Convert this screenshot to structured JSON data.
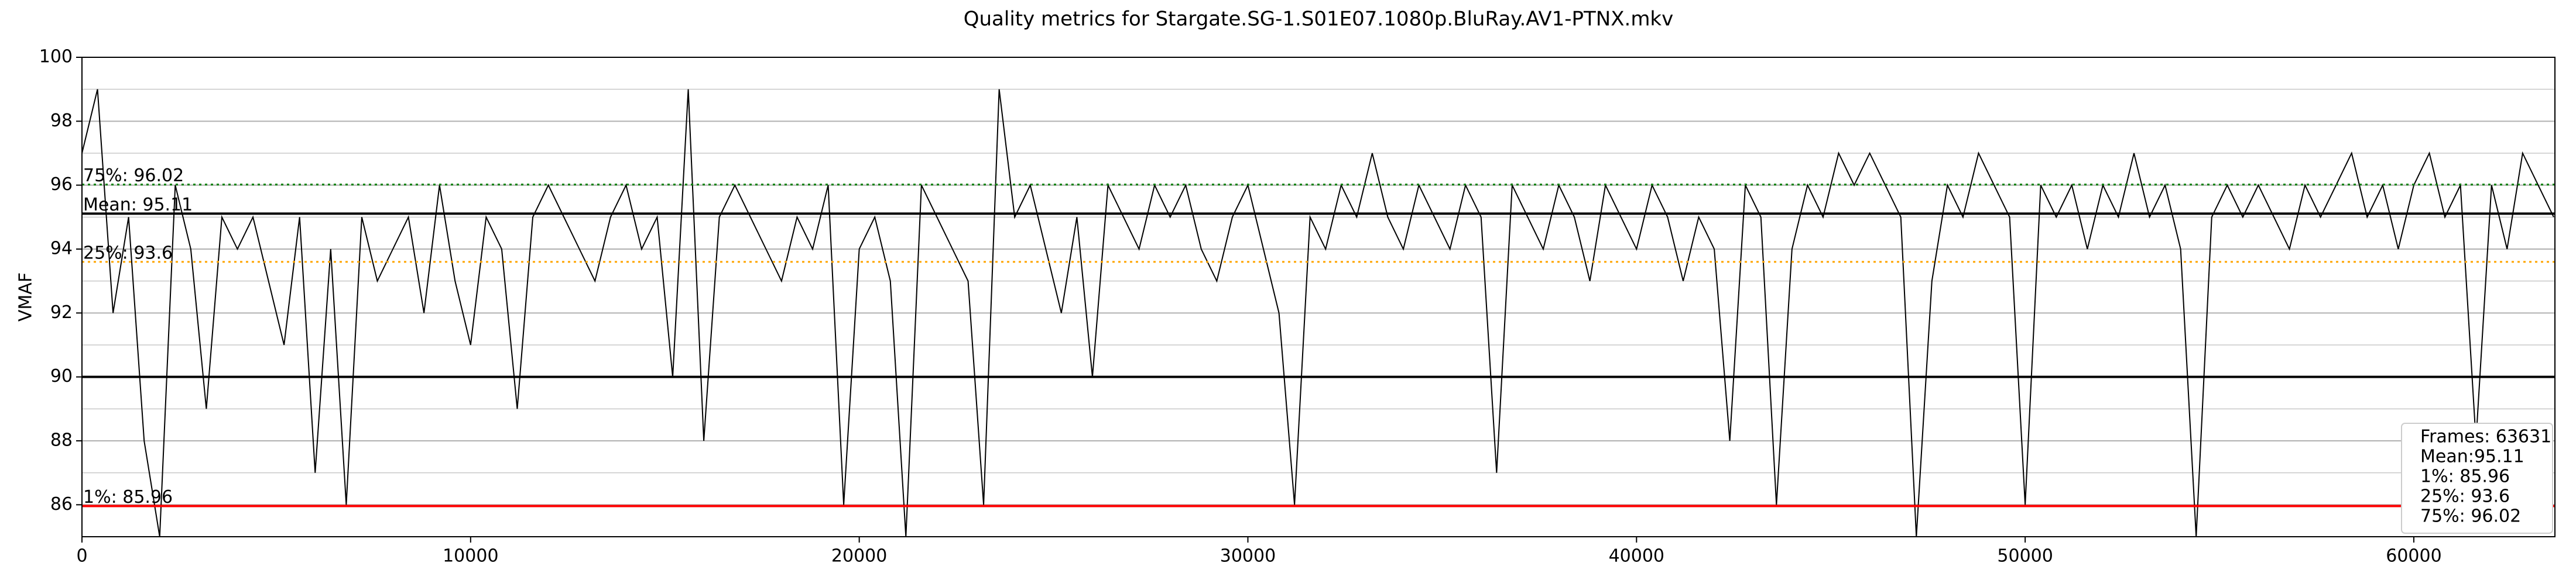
{
  "chart_data": {
    "type": "line",
    "title": "Quality metrics for Stargate.SG-1.S01E07.1080p.BluRay.AV1-PTNX.mkv",
    "y_label": "VMAF",
    "xlim": [
      0,
      63631
    ],
    "ylim": [
      85,
      100
    ],
    "xticks": [
      0,
      10000,
      20000,
      30000,
      40000,
      50000,
      60000
    ],
    "yticks": [
      86,
      88,
      90,
      92,
      94,
      96,
      98,
      100
    ],
    "yminorticks": [
      85,
      87,
      89,
      91,
      93,
      95,
      97,
      99
    ],
    "grid": true,
    "series": [
      {
        "name": "VMAF",
        "color": "#000000",
        "x": [
          0,
          400,
          800,
          1200,
          1600,
          2000,
          2400,
          2800,
          3200,
          3600,
          4000,
          4400,
          4800,
          5200,
          5600,
          6000,
          6400,
          6800,
          7200,
          7600,
          8000,
          8400,
          8800,
          9200,
          9600,
          10000,
          10400,
          10800,
          11200,
          11600,
          12000,
          12400,
          12800,
          13200,
          13600,
          14000,
          14400,
          14800,
          15200,
          15600,
          16000,
          16400,
          16800,
          17200,
          17600,
          18000,
          18400,
          18800,
          19200,
          19600,
          20000,
          20400,
          20800,
          21200,
          21600,
          22000,
          22400,
          22800,
          23200,
          23600,
          24000,
          24400,
          24800,
          25200,
          25600,
          26000,
          26400,
          26800,
          27200,
          27600,
          28000,
          28400,
          28800,
          29200,
          29600,
          30000,
          30400,
          30800,
          31200,
          31600,
          32000,
          32400,
          32800,
          33200,
          33600,
          34000,
          34400,
          34800,
          35200,
          35600,
          36000,
          36400,
          36800,
          37200,
          37600,
          38000,
          38400,
          38800,
          39200,
          39600,
          40000,
          40400,
          40800,
          41200,
          41600,
          42000,
          42400,
          42800,
          43200,
          43600,
          44000,
          44400,
          44800,
          45200,
          45600,
          46000,
          46400,
          46800,
          47200,
          47600,
          48000,
          48400,
          48800,
          49200,
          49600,
          50000,
          50400,
          50800,
          51200,
          51600,
          52000,
          52400,
          52800,
          53200,
          53600,
          54000,
          54400,
          54800,
          55200,
          55600,
          56000,
          56400,
          56800,
          57200,
          57600,
          58000,
          58400,
          58800,
          59200,
          59600,
          60000,
          60400,
          60800,
          61200,
          61600,
          62000,
          62400,
          62800,
          63200,
          63600
        ],
        "values": [
          97,
          99,
          92,
          95,
          88,
          85,
          96,
          94,
          89,
          95,
          94,
          95,
          93,
          91,
          95,
          87,
          94,
          86,
          95,
          93,
          94,
          95,
          92,
          96,
          93,
          91,
          95,
          94,
          89,
          95,
          96,
          95,
          94,
          93,
          95,
          96,
          94,
          95,
          90,
          99,
          88,
          95,
          96,
          95,
          94,
          93,
          95,
          94,
          96,
          86,
          94,
          95,
          93,
          85,
          96,
          95,
          94,
          93,
          86,
          99,
          95,
          96,
          94,
          92,
          95,
          90,
          96,
          95,
          94,
          96,
          95,
          96,
          94,
          93,
          95,
          96,
          94,
          92,
          86,
          95,
          94,
          96,
          95,
          97,
          95,
          94,
          96,
          95,
          94,
          96,
          95,
          87,
          96,
          95,
          94,
          96,
          95,
          93,
          96,
          95,
          94,
          96,
          95,
          93,
          95,
          94,
          88,
          96,
          95,
          86,
          94,
          96,
          95,
          97,
          96,
          97,
          96,
          95,
          85,
          93,
          96,
          95,
          97,
          96,
          95,
          86,
          96,
          95,
          96,
          94,
          96,
          95,
          97,
          95,
          96,
          94,
          85,
          95,
          96,
          95,
          96,
          95,
          94,
          96,
          95,
          96,
          97,
          95,
          96,
          94,
          96,
          97,
          95,
          96,
          88,
          96,
          94,
          97,
          96,
          95
        ]
      }
    ],
    "hlines": [
      {
        "value": 90,
        "color": "#000000",
        "style": "solid"
      },
      {
        "value": 95.11,
        "color": "#000000",
        "style": "solid",
        "label": "Mean: 95.11",
        "label_color": "#ffffff"
      },
      {
        "value": 85.96,
        "color": "#ff0000",
        "style": "solid",
        "label": "1%: 85.96",
        "label_color": "#ff0000"
      },
      {
        "value": 93.6,
        "color": "#ffa500",
        "style": "dotted",
        "label": "25%: 93.6",
        "label_color": "#ffa500"
      },
      {
        "value": 96.02,
        "color": "#008000",
        "style": "dotted",
        "label": "75%: 96.02",
        "label_color": "#008000"
      }
    ],
    "stats_box": [
      "Frames: 63631",
      "Mean:95.11",
      "1%: 85.96",
      "25%: 93.6",
      "75%: 96.02"
    ]
  }
}
